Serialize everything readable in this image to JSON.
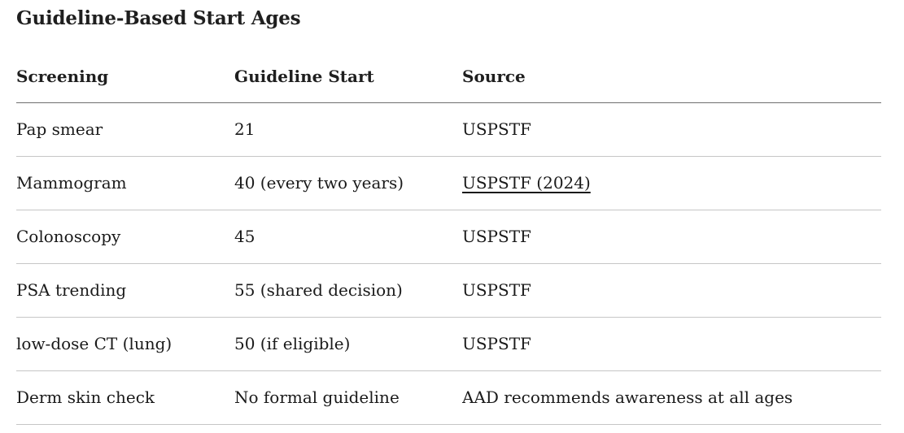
{
  "page_title": "Guideline-Based Start Ages",
  "table": {
    "columns": [
      "Screening",
      "Guideline Start",
      "Source"
    ],
    "rows": [
      {
        "screening": "Pap smear",
        "guideline_start": "21",
        "source": "USPSTF"
      },
      {
        "screening": "Mammogram",
        "guideline_start": "40 (every two years)",
        "source": "USPSTF (2024)"
      },
      {
        "screening": "Colonoscopy",
        "guideline_start": "45",
        "source": "USPSTF"
      },
      {
        "screening": "PSA trending",
        "guideline_start": "55 (shared decision)",
        "source": "USPSTF"
      },
      {
        "screening": "low-dose CT (lung)",
        "guideline_start": "50 (if eligible)",
        "source": "USPSTF"
      },
      {
        "screening": "Derm skin check",
        "guideline_start": "No formal guideline",
        "source": "AAD recommends awareness at all ages"
      }
    ]
  },
  "colors": {
    "text": "#1a1a1a",
    "header_rule": "#6e6e6e",
    "row_rule": "#c6c6c6",
    "background": "#ffffff"
  }
}
